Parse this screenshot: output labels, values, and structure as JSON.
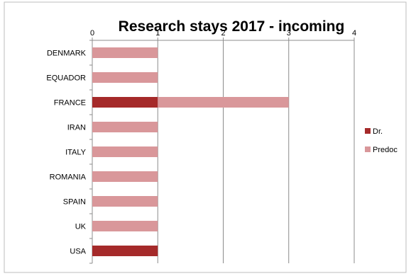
{
  "chart_data": {
    "type": "bar",
    "orientation": "horizontal",
    "stacked": true,
    "title": "Research stays 2017 - incoming",
    "xlim": [
      0,
      4
    ],
    "xticks": [
      0,
      1,
      2,
      3,
      4
    ],
    "x_axis_position": "top",
    "grid": true,
    "legend_position": "right",
    "categories": [
      "DENMARK",
      "EQUADOR",
      "FRANCE",
      "IRAN",
      "ITALY",
      "ROMANIA",
      "SPAIN",
      "UK",
      "USA"
    ],
    "series": [
      {
        "name": "Dr.",
        "color": "#a52a2a",
        "values": [
          0,
          0,
          1,
          0,
          0,
          0,
          0,
          0,
          1
        ]
      },
      {
        "name": "Predoc",
        "color": "#d9979a",
        "values": [
          1,
          1,
          2,
          1,
          1,
          1,
          1,
          1,
          0
        ]
      }
    ]
  }
}
